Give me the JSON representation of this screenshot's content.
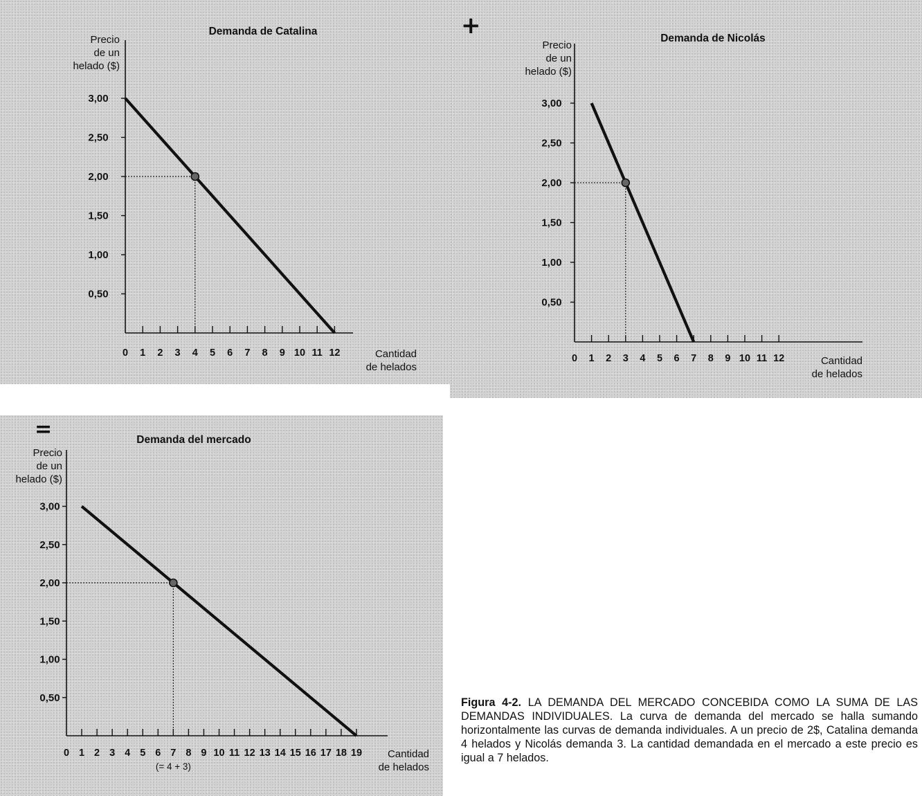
{
  "operators": {
    "plus": "+",
    "equals": "="
  },
  "chart_data": [
    {
      "type": "line",
      "title": "Demanda de Catalina",
      "ylabel": [
        "Precio",
        "de un",
        "helado ($)"
      ],
      "xlabel": [
        "Cantidad",
        "de helados"
      ],
      "x_ticks": [
        0,
        1,
        2,
        3,
        4,
        5,
        6,
        7,
        8,
        9,
        10,
        11,
        12
      ],
      "y_ticks": [
        "3,00",
        "2,50",
        "2,00",
        "1,50",
        "1,00",
        "0,50"
      ],
      "y_tick_values": [
        3.0,
        2.5,
        2.0,
        1.5,
        1.0,
        0.5
      ],
      "xlim": [
        0,
        12
      ],
      "ylim": [
        0,
        3
      ],
      "series": [
        {
          "x": [
            0,
            12
          ],
          "y": [
            3.0,
            0.0
          ]
        }
      ],
      "highlight": {
        "x": 4,
        "y": 2.0
      },
      "grid": false
    },
    {
      "type": "line",
      "title": "Demanda de Nicolás",
      "ylabel": [
        "Precio",
        "de un",
        "helado ($)"
      ],
      "xlabel": [
        "Cantidad",
        "de helados"
      ],
      "x_ticks": [
        0,
        1,
        2,
        3,
        4,
        5,
        6,
        7,
        8,
        9,
        10,
        11,
        12
      ],
      "y_ticks": [
        "3,00",
        "2,50",
        "2,00",
        "1,50",
        "1,00",
        "0,50"
      ],
      "y_tick_values": [
        3.0,
        2.5,
        2.0,
        1.5,
        1.0,
        0.5
      ],
      "xlim": [
        0,
        12
      ],
      "ylim": [
        0,
        3
      ],
      "series": [
        {
          "x": [
            1,
            7
          ],
          "y": [
            3.0,
            0.0
          ]
        }
      ],
      "highlight": {
        "x": 3,
        "y": 2.0
      },
      "grid": false
    },
    {
      "type": "line",
      "title": "Demanda del mercado",
      "ylabel": [
        "Precio",
        "de un",
        "helado ($)"
      ],
      "xlabel": [
        "Cantidad",
        "de helados"
      ],
      "x_ticks": [
        0,
        1,
        2,
        3,
        4,
        5,
        6,
        7,
        8,
        9,
        10,
        11,
        12,
        13,
        14,
        15,
        16,
        17,
        18,
        19
      ],
      "y_ticks": [
        "3,00",
        "2,50",
        "2,00",
        "1,50",
        "1,00",
        "0,50"
      ],
      "y_tick_values": [
        3.0,
        2.5,
        2.0,
        1.5,
        1.0,
        0.5
      ],
      "xlim": [
        0,
        19
      ],
      "ylim": [
        0,
        3
      ],
      "series": [
        {
          "x": [
            1,
            19
          ],
          "y": [
            3.0,
            0.0
          ]
        }
      ],
      "highlight": {
        "x": 7,
        "y": 2.0
      },
      "annotation": "(= 4 + 3)",
      "grid": false
    }
  ],
  "caption": {
    "label": "Figura 4-2.",
    "text": "LA DEMANDA DEL MERCADO CONCEBIDA COMO LA SUMA DE LAS DEMANDAS INDIVIDUALES. La curva de demanda del mercado se halla sumando horizontalmente las curvas de demanda individuales. A un precio de 2$, Catalina demanda 4 helados y Nicolás demanda 3. La cantidad demandada en el mercado a este precio es igual a 7 helados."
  }
}
